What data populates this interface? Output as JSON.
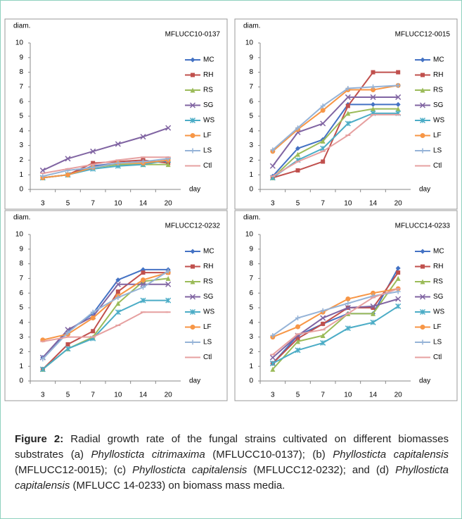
{
  "chart_data": [
    {
      "type": "line",
      "title": "MFLUCC10-0137",
      "y_label": "diam.",
      "x_label": "day",
      "categories": [
        "3",
        "5",
        "7",
        "10",
        "14",
        "20"
      ],
      "ylim": [
        0,
        10
      ],
      "yticks": [
        0,
        1,
        2,
        3,
        4,
        5,
        6,
        7,
        8,
        9,
        10
      ],
      "series": [
        {
          "name": "MC",
          "color": "#4472c4",
          "marker": "diamond",
          "values": [
            0.8,
            1.0,
            1.6,
            1.8,
            1.9,
            1.9
          ]
        },
        {
          "name": "RH",
          "color": "#c0504d",
          "marker": "square",
          "values": [
            0.8,
            1.0,
            1.8,
            1.9,
            2.0,
            1.8
          ]
        },
        {
          "name": "RS",
          "color": "#9bbb59",
          "marker": "triangle",
          "values": [
            0.8,
            1.0,
            1.5,
            1.7,
            1.7,
            1.7
          ]
        },
        {
          "name": "SG",
          "color": "#8064a2",
          "marker": "x",
          "values": [
            1.3,
            2.1,
            2.6,
            3.1,
            3.6,
            4.2
          ]
        },
        {
          "name": "WS",
          "color": "#4bacc6",
          "marker": "star",
          "values": [
            0.8,
            1.0,
            1.4,
            1.6,
            1.7,
            2.0
          ]
        },
        {
          "name": "LF",
          "color": "#f79646",
          "marker": "circle",
          "values": [
            0.8,
            1.0,
            1.5,
            1.8,
            1.8,
            2.0
          ]
        },
        {
          "name": "LS",
          "color": "#95b3d7",
          "marker": "plus",
          "values": [
            0.9,
            1.3,
            1.5,
            1.8,
            1.9,
            2.1
          ]
        },
        {
          "name": "Ctl",
          "color": "#e6a0a0",
          "marker": "dash",
          "values": [
            1.1,
            1.4,
            1.7,
            2.0,
            2.2,
            2.2
          ]
        }
      ]
    },
    {
      "type": "line",
      "title": "MFLUCC12-0015",
      "y_label": "diam.",
      "x_label": "day",
      "categories": [
        "3",
        "5",
        "7",
        "10",
        "14",
        "20"
      ],
      "ylim": [
        0,
        10
      ],
      "yticks": [
        0,
        1,
        2,
        3,
        4,
        5,
        6,
        7,
        8,
        9,
        10
      ],
      "series": [
        {
          "name": "MC",
          "color": "#4472c4",
          "marker": "diamond",
          "values": [
            0.9,
            2.8,
            3.4,
            5.8,
            5.8,
            5.8
          ]
        },
        {
          "name": "RH",
          "color": "#c0504d",
          "marker": "square",
          "values": [
            0.8,
            1.3,
            1.9,
            5.7,
            8.0,
            8.0
          ]
        },
        {
          "name": "RS",
          "color": "#9bbb59",
          "marker": "triangle",
          "values": [
            0.8,
            2.4,
            3.3,
            5.2,
            5.5,
            5.5
          ]
        },
        {
          "name": "SG",
          "color": "#8064a2",
          "marker": "x",
          "values": [
            1.6,
            3.9,
            4.5,
            6.3,
            6.3,
            6.3
          ]
        },
        {
          "name": "WS",
          "color": "#4bacc6",
          "marker": "star",
          "values": [
            0.8,
            2.0,
            2.8,
            4.5,
            5.2,
            5.2
          ]
        },
        {
          "name": "LF",
          "color": "#f79646",
          "marker": "circle",
          "values": [
            2.6,
            4.1,
            5.4,
            6.8,
            6.8,
            7.1
          ]
        },
        {
          "name": "LS",
          "color": "#95b3d7",
          "marker": "plus",
          "values": [
            2.7,
            4.2,
            5.7,
            6.9,
            7.0,
            7.1
          ]
        },
        {
          "name": "Ctl",
          "color": "#e6a0a0",
          "marker": "dash",
          "values": [
            0.9,
            1.9,
            2.6,
            3.7,
            5.1,
            5.1
          ]
        }
      ]
    },
    {
      "type": "line",
      "title": "MFLUCC12-0232",
      "y_label": "diam.",
      "x_label": "day",
      "categories": [
        "3",
        "5",
        "7",
        "10",
        "14",
        "20"
      ],
      "ylim": [
        0,
        10
      ],
      "yticks": [
        0,
        1,
        2,
        3,
        4,
        5,
        6,
        7,
        8,
        9,
        10
      ],
      "series": [
        {
          "name": "MC",
          "color": "#4472c4",
          "marker": "diamond",
          "values": [
            1.6,
            3.4,
            4.6,
            6.9,
            7.6,
            7.6
          ]
        },
        {
          "name": "RH",
          "color": "#c0504d",
          "marker": "square",
          "values": [
            0.8,
            2.5,
            3.4,
            6.1,
            7.4,
            7.4
          ]
        },
        {
          "name": "RS",
          "color": "#9bbb59",
          "marker": "triangle",
          "values": [
            0.8,
            2.2,
            3.0,
            5.3,
            6.8,
            7.0
          ]
        },
        {
          "name": "SG",
          "color": "#8064a2",
          "marker": "x",
          "values": [
            1.6,
            3.5,
            4.4,
            6.6,
            6.6,
            6.6
          ]
        },
        {
          "name": "WS",
          "color": "#4bacc6",
          "marker": "star",
          "values": [
            0.8,
            2.2,
            2.9,
            4.7,
            5.5,
            5.5
          ]
        },
        {
          "name": "LF",
          "color": "#f79646",
          "marker": "circle",
          "values": [
            2.8,
            3.2,
            4.3,
            5.8,
            6.9,
            7.4
          ]
        },
        {
          "name": "LS",
          "color": "#95b3d7",
          "marker": "plus",
          "values": [
            1.5,
            3.3,
            4.7,
            5.7,
            6.4,
            7.5
          ]
        },
        {
          "name": "Ctl",
          "color": "#e6a0a0",
          "marker": "dash",
          "values": [
            2.7,
            3.0,
            3.0,
            3.8,
            4.7,
            4.7
          ]
        }
      ]
    },
    {
      "type": "line",
      "title": "MFLUCC14-0233",
      "y_label": "diam.",
      "x_label": "day",
      "categories": [
        "3",
        "5",
        "7",
        "10",
        "14",
        "20"
      ],
      "ylim": [
        0,
        10
      ],
      "yticks": [
        0,
        1,
        2,
        3,
        4,
        5,
        6,
        7,
        8,
        9,
        10
      ],
      "series": [
        {
          "name": "MC",
          "color": "#4472c4",
          "marker": "diamond",
          "values": [
            1.2,
            3.1,
            3.9,
            4.6,
            4.6,
            7.7
          ]
        },
        {
          "name": "RH",
          "color": "#c0504d",
          "marker": "square",
          "values": [
            1.2,
            2.9,
            3.9,
            5.0,
            5.0,
            7.4
          ]
        },
        {
          "name": "RS",
          "color": "#9bbb59",
          "marker": "triangle",
          "values": [
            0.8,
            2.7,
            3.1,
            4.6,
            4.6,
            7.0
          ]
        },
        {
          "name": "SG",
          "color": "#8064a2",
          "marker": "x",
          "values": [
            1.6,
            3.1,
            4.3,
            5.0,
            5.1,
            5.6
          ]
        },
        {
          "name": "WS",
          "color": "#4bacc6",
          "marker": "star",
          "values": [
            1.2,
            2.1,
            2.6,
            3.6,
            4.0,
            5.1
          ]
        },
        {
          "name": "LF",
          "color": "#f79646",
          "marker": "circle",
          "values": [
            3.0,
            3.7,
            4.7,
            5.6,
            6.0,
            6.3
          ]
        },
        {
          "name": "LS",
          "color": "#95b3d7",
          "marker": "plus",
          "values": [
            3.1,
            4.3,
            4.8,
            5.3,
            5.8,
            6.1
          ]
        },
        {
          "name": "Ctl",
          "color": "#e6a0a0",
          "marker": "dash",
          "values": [
            1.8,
            3.2,
            3.5,
            4.6,
            5.7,
            6.3
          ]
        }
      ]
    }
  ],
  "caption": {
    "label": "Figure 2:",
    "parts": [
      {
        "text": " Radial growth rate of the fungal strains cultivated on different biomasses substrates (a) ",
        "italic": false
      },
      {
        "text": "Phyllosticta citrimaxima",
        "italic": true
      },
      {
        "text": " (MFLUCC10-0137); (b) ",
        "italic": false
      },
      {
        "text": "Phyllosticta capitalensis",
        "italic": true
      },
      {
        "text": " (MFLUCC12-0015); (c) ",
        "italic": false
      },
      {
        "text": "Phyllosticta capitalensis",
        "italic": true
      },
      {
        "text": " (MFLUCC12-0232); and (d) ",
        "italic": false
      },
      {
        "text": "Phyllosticta capitalensis",
        "italic": true
      },
      {
        "text": " (MFLUCC 14-0233) on biomass mass media.",
        "italic": false
      }
    ]
  }
}
